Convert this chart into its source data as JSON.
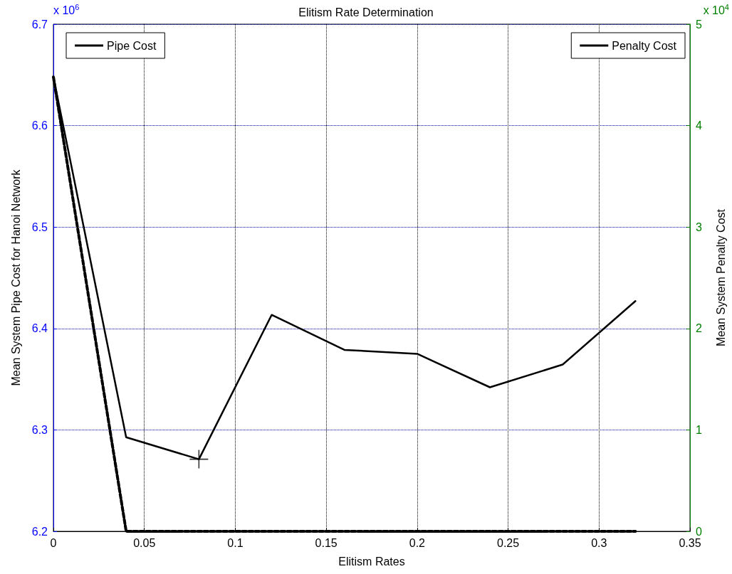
{
  "chart_data": {
    "type": "line",
    "title": "Elitism Rate Determination",
    "xlabel": "Elitism Rates",
    "ylabel": "Mean System Pipe Cost for Hanoi Network",
    "y2label": "Mean System Penalty Cost",
    "annotations": [
      "x 10$^{6}$",
      "x 10$^{4}$"
    ],
    "x": [
      0,
      0.04,
      0.08,
      0.12,
      0.16,
      0.2,
      0.24,
      0.28,
      0.32
    ],
    "series": [
      {
        "name": "Pipe Cost",
        "color": "#000000",
        "line_style": "solid",
        "values": [
          6.648,
          6.2927,
          6.2711,
          6.4134,
          6.3789,
          6.375,
          6.342,
          6.3644,
          6.427
        ]
      },
      {
        "name": "Penalty Cost",
        "color": "#000000",
        "line_style": "dashed",
        "axis": "y2",
        "values": [
          4.48,
          0,
          0,
          0,
          0,
          0,
          0,
          0,
          0
        ]
      },
      {
        "type": "scatter",
        "marker": "cross",
        "color": "#000000",
        "x": [
          0.08
        ],
        "values": [
          6.2711
        ]
      }
    ],
    "xlim": [
      0,
      0.35
    ],
    "xticks": [
      0,
      0.05,
      0.1,
      0.15,
      0.2,
      0.25,
      0.3,
      0.35
    ],
    "ylim": [
      6.2,
      6.7
    ],
    "yticks": [
      6.2,
      6.3,
      6.4,
      6.5,
      6.6,
      6.7
    ],
    "y2lim": [
      0,
      5
    ],
    "y2ticks": [
      0,
      1,
      2,
      3,
      4,
      5
    ],
    "grid": true,
    "legend": "top",
    "marker": "none"
  }
}
